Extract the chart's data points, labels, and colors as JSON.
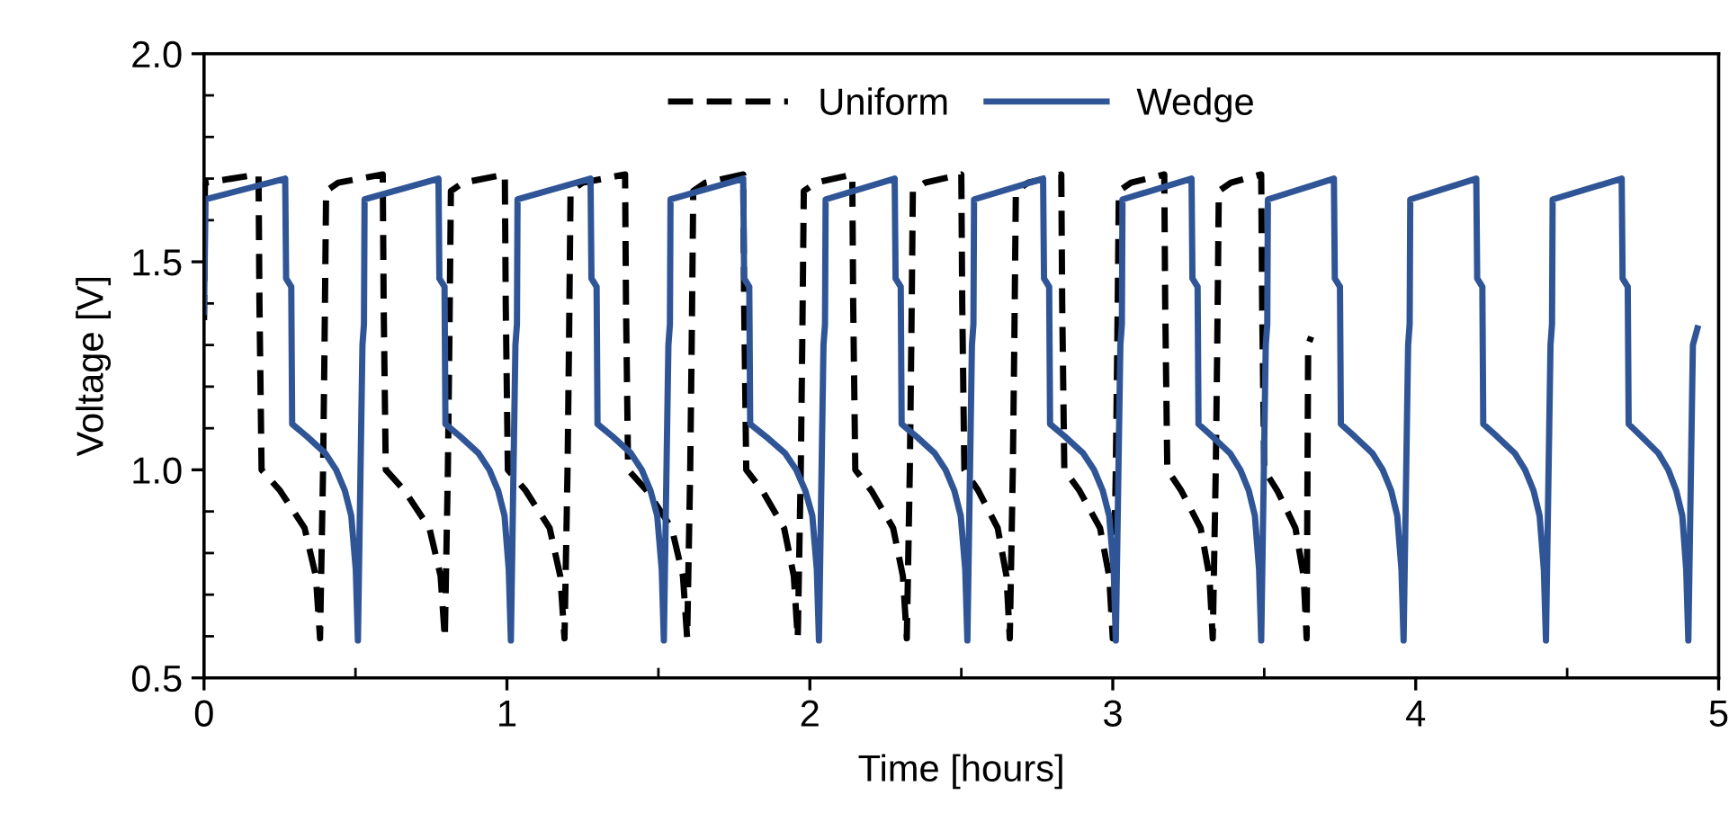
{
  "chart_data": {
    "type": "line",
    "xlabel": "Time [hours]",
    "ylabel": "Voltage [V]",
    "xlim": [
      0,
      5
    ],
    "ylim": [
      0.5,
      2.0
    ],
    "xticks": [
      0,
      {
        "value": 0.5,
        "label": null
      },
      1,
      {
        "value": 1.5,
        "label": null
      },
      2,
      {
        "value": 2.5,
        "label": null
      },
      3,
      {
        "value": 3.5,
        "label": null
      },
      4,
      {
        "value": 4.5,
        "label": null
      },
      5
    ],
    "yticks": [
      {
        "value": 0.5,
        "label": "0.5"
      },
      {
        "value": 0.6,
        "label": null
      },
      {
        "value": 0.7,
        "label": null
      },
      {
        "value": 0.8,
        "label": null
      },
      {
        "value": 0.9,
        "label": null
      },
      {
        "value": 1.0,
        "label": "1.0"
      },
      {
        "value": 1.1,
        "label": null
      },
      {
        "value": 1.2,
        "label": null
      },
      {
        "value": 1.3,
        "label": null
      },
      {
        "value": 1.4,
        "label": null
      },
      {
        "value": 1.5,
        "label": "1.5"
      },
      {
        "value": 1.6,
        "label": null
      },
      {
        "value": 1.7,
        "label": null
      },
      {
        "value": 1.8,
        "label": null
      },
      {
        "value": 1.9,
        "label": null
      },
      {
        "value": 2.0,
        "label": "2.0"
      }
    ],
    "grid": false,
    "legend": "top",
    "marker": "none",
    "series": [
      {
        "name": "Uniform",
        "color": "#000000",
        "line_style": "dashed",
        "x": [
          0,
          0.003,
          0.18,
          0.183,
          0.19,
          0.251,
          0.332,
          0.369,
          0.383,
          0.393,
          0.398,
          0.403,
          0.443,
          0.59,
          0.593,
          0.6,
          0.662,
          0.744,
          0.781,
          0.795,
          0.805,
          0.81,
          0.815,
          0.855,
          0.993,
          0.996,
          1.003,
          1.062,
          1.141,
          1.176,
          1.19,
          1.2,
          1.205,
          1.21,
          1.25,
          1.39,
          1.393,
          1.4,
          1.462,
          1.544,
          1.581,
          1.595,
          1.605,
          1.61,
          1.615,
          1.655,
          1.78,
          1.783,
          1.79,
          1.843,
          1.915,
          1.947,
          1.96,
          1.97,
          1.975,
          1.98,
          2.02,
          2.14,
          2.143,
          2.15,
          2.203,
          2.275,
          2.307,
          2.32,
          2.33,
          2.335,
          2.34,
          2.38,
          2.5,
          2.503,
          2.51,
          2.556,
          2.62,
          2.649,
          2.66,
          2.67,
          2.675,
          2.68,
          2.72,
          2.83,
          2.833,
          2.84,
          2.89,
          2.958,
          2.988,
          3.0,
          3.01,
          3.015,
          3.02,
          3.06,
          3.17,
          3.173,
          3.18,
          3.226,
          3.29,
          3.319,
          3.33,
          3.34,
          3.345,
          3.35,
          3.39,
          3.49,
          3.493,
          3.5,
          3.543,
          3.603,
          3.63,
          3.64,
          3.645,
          3.655
        ],
        "values": [
          1.36,
          1.69,
          1.71,
          1.4,
          1.0,
          0.95,
          0.86,
          0.745,
          0.595,
          1.0,
          1.31,
          1.67,
          1.69,
          1.71,
          1.4,
          1.0,
          0.95,
          0.86,
          0.745,
          0.595,
          1.0,
          1.31,
          1.67,
          1.69,
          1.71,
          1.4,
          1.0,
          0.95,
          0.86,
          0.745,
          0.595,
          1.0,
          1.31,
          1.67,
          1.69,
          1.71,
          1.4,
          1.0,
          0.95,
          0.86,
          0.745,
          0.595,
          1.0,
          1.31,
          1.67,
          1.69,
          1.71,
          1.4,
          1.0,
          0.95,
          0.86,
          0.745,
          0.595,
          1.0,
          1.31,
          1.67,
          1.69,
          1.71,
          1.4,
          1.0,
          0.95,
          0.86,
          0.745,
          0.595,
          1.0,
          1.31,
          1.67,
          1.69,
          1.71,
          1.4,
          1.0,
          0.95,
          0.86,
          0.745,
          0.595,
          1.0,
          1.31,
          1.67,
          1.69,
          1.71,
          1.4,
          1.0,
          0.95,
          0.86,
          0.745,
          0.595,
          1.0,
          1.31,
          1.67,
          1.69,
          1.71,
          1.4,
          1.0,
          0.95,
          0.86,
          0.745,
          0.595,
          1.0,
          1.31,
          1.67,
          1.69,
          1.71,
          1.4,
          1.0,
          0.95,
          0.86,
          0.745,
          0.595,
          1.3,
          1.32
        ]
      },
      {
        "name": "Wedge",
        "color": "#2f5597",
        "line_style": "solid",
        "x": [
          0,
          0.005,
          0.268,
          0.271,
          0.288,
          0.291,
          0.34,
          0.4,
          0.436,
          0.465,
          0.486,
          0.501,
          0.508,
          0.523,
          0.528,
          0.53,
          0.774,
          0.777,
          0.794,
          0.797,
          0.846,
          0.906,
          0.942,
          0.971,
          0.992,
          1.006,
          1.013,
          1.028,
          1.033,
          1.035,
          1.276,
          1.279,
          1.296,
          1.299,
          1.349,
          1.409,
          1.445,
          1.474,
          1.496,
          1.511,
          1.518,
          1.533,
          1.538,
          1.54,
          1.78,
          1.783,
          1.8,
          1.803,
          1.855,
          1.918,
          1.955,
          1.985,
          2.008,
          2.023,
          2.03,
          2.045,
          2.05,
          2.052,
          2.28,
          2.283,
          2.3,
          2.303,
          2.352,
          2.412,
          2.448,
          2.477,
          2.498,
          2.513,
          2.52,
          2.535,
          2.54,
          2.542,
          2.77,
          2.773,
          2.79,
          2.793,
          2.842,
          2.902,
          2.938,
          2.967,
          2.988,
          3.003,
          3.01,
          3.025,
          3.03,
          3.032,
          3.26,
          3.263,
          3.28,
          3.283,
          3.329,
          3.387,
          3.421,
          3.449,
          3.469,
          3.483,
          3.49,
          3.505,
          3.51,
          3.512,
          3.73,
          3.733,
          3.75,
          3.753,
          3.799,
          3.857,
          3.891,
          3.919,
          3.939,
          3.953,
          3.96,
          3.975,
          3.98,
          3.982,
          4.2,
          4.203,
          4.22,
          4.223,
          4.269,
          4.327,
          4.361,
          4.389,
          4.409,
          4.423,
          4.43,
          4.445,
          4.45,
          4.452,
          4.68,
          4.683,
          4.7,
          4.703,
          4.746,
          4.801,
          4.834,
          4.86,
          4.88,
          4.893,
          4.9,
          4.915,
          4.93
        ],
        "values": [
          1.38,
          1.65,
          1.7,
          1.46,
          1.44,
          1.11,
          1.08,
          1.04,
          1.0,
          0.95,
          0.89,
          0.76,
          0.59,
          1.3,
          1.35,
          1.65,
          1.7,
          1.46,
          1.44,
          1.11,
          1.08,
          1.04,
          1.0,
          0.95,
          0.89,
          0.76,
          0.59,
          1.3,
          1.35,
          1.65,
          1.7,
          1.46,
          1.44,
          1.11,
          1.08,
          1.04,
          1.0,
          0.95,
          0.89,
          0.76,
          0.59,
          1.3,
          1.35,
          1.65,
          1.7,
          1.46,
          1.44,
          1.11,
          1.08,
          1.04,
          1.0,
          0.95,
          0.89,
          0.76,
          0.59,
          1.3,
          1.35,
          1.65,
          1.7,
          1.46,
          1.44,
          1.11,
          1.08,
          1.04,
          1.0,
          0.95,
          0.89,
          0.76,
          0.59,
          1.3,
          1.35,
          1.65,
          1.7,
          1.46,
          1.44,
          1.11,
          1.08,
          1.04,
          1.0,
          0.95,
          0.89,
          0.76,
          0.59,
          1.3,
          1.35,
          1.65,
          1.7,
          1.46,
          1.44,
          1.11,
          1.08,
          1.04,
          1.0,
          0.95,
          0.89,
          0.76,
          0.59,
          1.3,
          1.35,
          1.65,
          1.7,
          1.46,
          1.44,
          1.11,
          1.08,
          1.04,
          1.0,
          0.95,
          0.89,
          0.76,
          0.59,
          1.3,
          1.35,
          1.65,
          1.7,
          1.46,
          1.44,
          1.11,
          1.08,
          1.04,
          1.0,
          0.95,
          0.89,
          0.76,
          0.59,
          1.3,
          1.35,
          1.65,
          1.7,
          1.46,
          1.44,
          1.11,
          1.08,
          1.04,
          1.0,
          0.95,
          0.89,
          0.76,
          0.59,
          1.3,
          1.34
        ]
      }
    ]
  }
}
